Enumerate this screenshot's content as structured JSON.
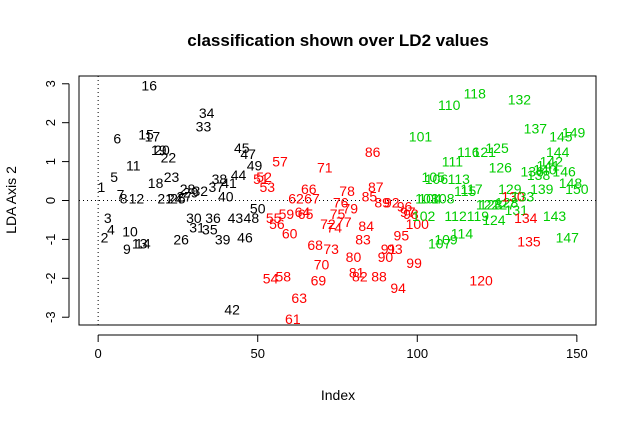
{
  "chart_data": {
    "type": "scatter",
    "title": "classification shown over LD2 values",
    "xlabel": "Index",
    "ylabel": "LDA Axis 2",
    "xlim": [
      -6,
      156
    ],
    "ylim": [
      -3.2,
      3.2
    ],
    "x_ticks": [
      0,
      50,
      100,
      150
    ],
    "y_ticks": [
      -3,
      -2,
      -1,
      0,
      1,
      2,
      3
    ],
    "reference_lines": {
      "vertical_x": 0,
      "horizontal_y": 0,
      "style": "dotted"
    },
    "grid": false,
    "legend": "none",
    "marker": "index number as text label",
    "series": [
      {
        "color": "#000000",
        "points": [
          {
            "x": 1,
            "y": 0.35
          },
          {
            "x": 2,
            "y": -0.95
          },
          {
            "x": 3,
            "y": -0.45
          },
          {
            "x": 4,
            "y": -0.75
          },
          {
            "x": 5,
            "y": 0.6
          },
          {
            "x": 6,
            "y": 1.6
          },
          {
            "x": 7,
            "y": 0.15
          },
          {
            "x": 8,
            "y": 0.05
          },
          {
            "x": 9,
            "y": -1.25
          },
          {
            "x": 10,
            "y": -0.8
          },
          {
            "x": 11,
            "y": 0.9
          },
          {
            "x": 12,
            "y": 0.05
          },
          {
            "x": 13,
            "y": -1.1
          },
          {
            "x": 14,
            "y": -1.1
          },
          {
            "x": 15,
            "y": 1.7
          },
          {
            "x": 16,
            "y": 2.95
          },
          {
            "x": 17,
            "y": 1.65
          },
          {
            "x": 18,
            "y": 0.45
          },
          {
            "x": 19,
            "y": 1.3
          },
          {
            "x": 20,
            "y": 1.3
          },
          {
            "x": 21,
            "y": 0.05
          },
          {
            "x": 22,
            "y": 1.1
          },
          {
            "x": 23,
            "y": 0.6
          },
          {
            "x": 24,
            "y": 0.05
          },
          {
            "x": 25,
            "y": 0.05
          },
          {
            "x": 26,
            "y": -1.0
          },
          {
            "x": 27,
            "y": 0.1
          },
          {
            "x": 28,
            "y": 0.3
          },
          {
            "x": 29,
            "y": 0.2
          },
          {
            "x": 30,
            "y": -0.45
          },
          {
            "x": 31,
            "y": -0.7
          },
          {
            "x": 32,
            "y": 0.25
          },
          {
            "x": 33,
            "y": 1.9
          },
          {
            "x": 34,
            "y": 2.25
          },
          {
            "x": 35,
            "y": -0.75
          },
          {
            "x": 36,
            "y": -0.45
          },
          {
            "x": 37,
            "y": 0.35
          },
          {
            "x": 38,
            "y": 0.55
          },
          {
            "x": 39,
            "y": -1.0
          },
          {
            "x": 40,
            "y": 0.1
          },
          {
            "x": 41,
            "y": 0.45
          },
          {
            "x": 42,
            "y": -2.8
          },
          {
            "x": 43,
            "y": -0.45
          },
          {
            "x": 44,
            "y": 0.65
          },
          {
            "x": 45,
            "y": 1.35
          },
          {
            "x": 46,
            "y": -0.95
          },
          {
            "x": 47,
            "y": 1.2
          },
          {
            "x": 48,
            "y": -0.45
          },
          {
            "x": 49,
            "y": 0.9
          },
          {
            "x": 50,
            "y": -0.2
          }
        ]
      },
      {
        "color": "#ff0000",
        "points": [
          {
            "x": 51,
            "y": 0.55
          },
          {
            "x": 52,
            "y": 0.6
          },
          {
            "x": 53,
            "y": 0.35
          },
          {
            "x": 54,
            "y": -2.0
          },
          {
            "x": 55,
            "y": -0.45
          },
          {
            "x": 56,
            "y": -0.6
          },
          {
            "x": 57,
            "y": 1.0
          },
          {
            "x": 58,
            "y": -1.95
          },
          {
            "x": 59,
            "y": -0.35
          },
          {
            "x": 60,
            "y": -0.85
          },
          {
            "x": 61,
            "y": -3.05
          },
          {
            "x": 62,
            "y": 0.05
          },
          {
            "x": 63,
            "y": -2.5
          },
          {
            "x": 64,
            "y": -0.3
          },
          {
            "x": 65,
            "y": -0.35
          },
          {
            "x": 66,
            "y": 0.3
          },
          {
            "x": 67,
            "y": 0.05
          },
          {
            "x": 68,
            "y": -1.15
          },
          {
            "x": 69,
            "y": -2.05
          },
          {
            "x": 70,
            "y": -1.65
          },
          {
            "x": 71,
            "y": 0.85
          },
          {
            "x": 72,
            "y": -0.6
          },
          {
            "x": 73,
            "y": -1.25
          },
          {
            "x": 74,
            "y": -0.7
          },
          {
            "x": 75,
            "y": -0.35
          },
          {
            "x": 76,
            "y": -0.05
          },
          {
            "x": 77,
            "y": -0.55
          },
          {
            "x": 78,
            "y": 0.25
          },
          {
            "x": 79,
            "y": -0.2
          },
          {
            "x": 80,
            "y": -1.45
          },
          {
            "x": 81,
            "y": -1.85
          },
          {
            "x": 82,
            "y": -1.95
          },
          {
            "x": 83,
            "y": -1.0
          },
          {
            "x": 84,
            "y": -0.65
          },
          {
            "x": 85,
            "y": 0.1
          },
          {
            "x": 86,
            "y": 1.25
          },
          {
            "x": 87,
            "y": 0.35
          },
          {
            "x": 88,
            "y": -1.95
          },
          {
            "x": 89,
            "y": -0.05
          },
          {
            "x": 90,
            "y": -1.45
          },
          {
            "x": 91,
            "y": -1.25
          },
          {
            "x": 92,
            "y": -0.05
          },
          {
            "x": 93,
            "y": -1.25
          },
          {
            "x": 94,
            "y": -2.25
          },
          {
            "x": 95,
            "y": -0.9
          },
          {
            "x": 96,
            "y": -0.15
          },
          {
            "x": 97,
            "y": -0.3
          },
          {
            "x": 98,
            "y": -0.35
          },
          {
            "x": 99,
            "y": -1.6
          },
          {
            "x": 100,
            "y": -0.6
          }
        ]
      },
      {
        "color": "#00cd00",
        "points": [
          {
            "x": 101,
            "y": 1.65
          },
          {
            "x": 102,
            "y": -0.4
          },
          {
            "x": 103,
            "y": 0.05
          },
          {
            "x": 104,
            "y": 0.05
          },
          {
            "x": 105,
            "y": 0.6
          },
          {
            "x": 106,
            "y": 0.55
          },
          {
            "x": 107,
            "y": -1.1
          },
          {
            "x": 108,
            "y": 0.05
          },
          {
            "x": 109,
            "y": -1.0
          },
          {
            "x": 110,
            "y": 2.45
          },
          {
            "x": 111,
            "y": 1.0
          },
          {
            "x": 112,
            "y": -0.4
          },
          {
            "x": 113,
            "y": 0.55
          },
          {
            "x": 114,
            "y": -0.85
          },
          {
            "x": 115,
            "y": 0.25
          },
          {
            "x": 116,
            "y": 1.25
          },
          {
            "x": 117,
            "y": 0.3
          },
          {
            "x": 118,
            "y": 2.75
          },
          {
            "x": 119,
            "y": -0.4
          },
          {
            "x": 120,
            "y": -2.05
          },
          {
            "x": 121,
            "y": 1.25
          },
          {
            "x": 122,
            "y": -0.1
          },
          {
            "x": 123,
            "y": -0.1
          },
          {
            "x": 124,
            "y": -0.5
          },
          {
            "x": 125,
            "y": 1.35
          },
          {
            "x": 126,
            "y": 0.85
          },
          {
            "x": 127,
            "y": -0.1
          },
          {
            "x": 128,
            "y": -0.05
          },
          {
            "x": 129,
            "y": 0.3
          },
          {
            "x": 130,
            "y": 0.1
          },
          {
            "x": 131,
            "y": -0.25
          },
          {
            "x": 132,
            "y": 2.6
          },
          {
            "x": 133,
            "y": 0.1
          },
          {
            "x": 134,
            "y": -0.45
          },
          {
            "x": 135,
            "y": -1.05
          },
          {
            "x": 136,
            "y": 0.75
          },
          {
            "x": 137,
            "y": 1.85
          },
          {
            "x": 138,
            "y": 0.65
          },
          {
            "x": 139,
            "y": 0.3
          },
          {
            "x": 140,
            "y": 0.8
          },
          {
            "x": 141,
            "y": 0.9
          },
          {
            "x": 142,
            "y": 1.0
          },
          {
            "x": 143,
            "y": -0.4
          },
          {
            "x": 144,
            "y": 1.25
          },
          {
            "x": 145,
            "y": 1.65
          },
          {
            "x": 146,
            "y": 0.75
          },
          {
            "x": 147,
            "y": -0.95
          },
          {
            "x": 148,
            "y": 0.45
          },
          {
            "x": 149,
            "y": 1.75
          },
          {
            "x": 150,
            "y": 0.3
          }
        ]
      }
    ],
    "label_colors_override": {
      "120": "#ff0000",
      "130": "#ff0000",
      "134": "#ff0000",
      "135": "#ff0000"
    }
  }
}
